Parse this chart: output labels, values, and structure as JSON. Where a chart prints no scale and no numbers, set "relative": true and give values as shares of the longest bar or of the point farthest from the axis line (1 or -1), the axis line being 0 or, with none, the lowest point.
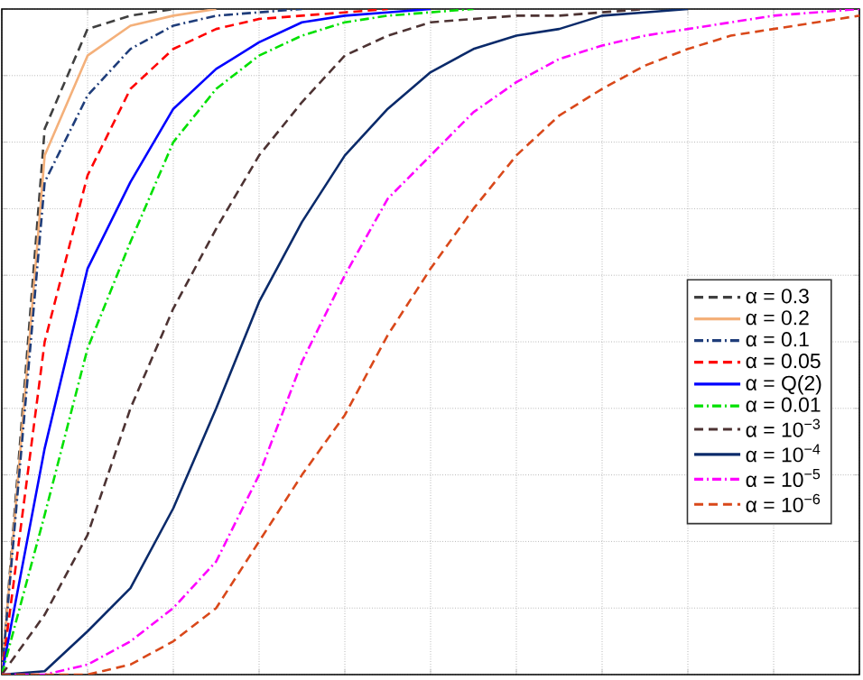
{
  "chart_data": {
    "type": "line",
    "relative": true,
    "grid": true,
    "legend": "right",
    "categories": [
      null,
      null,
      null,
      null,
      null,
      null,
      null,
      null,
      null,
      null,
      null,
      null,
      null,
      null,
      null,
      null,
      null,
      null,
      null,
      null,
      null
    ],
    "series": [
      {
        "name": "α = 0.3",
        "color": "#404040",
        "line_style": "dashed",
        "values": [
          0,
          0.82,
          0.97,
          0.99,
          1,
          null,
          null,
          null,
          null,
          null,
          null,
          null,
          null,
          null,
          null,
          null,
          null,
          null,
          null,
          null,
          null
        ]
      },
      {
        "name": "α = 0.2",
        "color": "#f4b07a",
        "line_style": "solid",
        "values": [
          0,
          0.78,
          0.93,
          0.975,
          0.99,
          1,
          null,
          null,
          null,
          null,
          null,
          null,
          null,
          null,
          null,
          null,
          null,
          null,
          null,
          null,
          null
        ]
      },
      {
        "name": "α = 0.1",
        "color": "#1f3d7a",
        "line_style": "dashdot",
        "values": [
          0,
          0.74,
          0.87,
          0.94,
          0.975,
          0.99,
          0.995,
          1,
          null,
          null,
          null,
          null,
          null,
          null,
          null,
          null,
          null,
          null,
          null,
          null,
          null
        ]
      },
      {
        "name": "α = 0.05",
        "color": "#ff0000",
        "line_style": "dashed",
        "values": [
          0,
          0.5,
          0.75,
          0.88,
          0.94,
          0.97,
          0.985,
          0.99,
          0.995,
          1,
          null,
          null,
          null,
          null,
          null,
          null,
          null,
          null,
          null,
          null,
          null
        ]
      },
      {
        "name": "α = Q(2)",
        "color": "#0000ff",
        "line_style": "solid",
        "values": [
          0,
          0.34,
          0.61,
          0.74,
          0.85,
          0.91,
          0.95,
          0.98,
          0.99,
          0.995,
          1,
          null,
          null,
          null,
          null,
          null,
          null,
          null,
          null,
          null,
          null
        ]
      },
      {
        "name": "α = 0.01",
        "color": "#00e000",
        "line_style": "dashdot",
        "values": [
          0,
          0.24,
          0.49,
          0.65,
          0.8,
          0.88,
          0.93,
          0.96,
          0.98,
          0.99,
          0.995,
          1,
          null,
          null,
          null,
          null,
          null,
          null,
          null,
          null,
          null
        ]
      },
      {
        "name": "α = 10$^{−3}$",
        "color": "#4d3333",
        "line_style": "dashed",
        "values": [
          0,
          0.09,
          0.21,
          0.4,
          0.55,
          0.67,
          0.78,
          0.86,
          0.93,
          0.96,
          0.98,
          0.985,
          0.99,
          0.99,
          0.995,
          1,
          null,
          null,
          null,
          null,
          null
        ]
      },
      {
        "name": "α = 10$^{−4}$",
        "color": "#0a2a6a",
        "line_style": "solid",
        "values": [
          0,
          0.005,
          0.065,
          0.13,
          0.25,
          0.4,
          0.56,
          0.68,
          0.78,
          0.85,
          0.905,
          0.94,
          0.96,
          0.97,
          0.99,
          0.995,
          1,
          null,
          null,
          null,
          null
        ]
      },
      {
        "name": "α = 10$^{−5}$",
        "color": "#ff00ff",
        "line_style": "dashdot",
        "values": [
          0,
          0,
          0.015,
          0.05,
          0.1,
          0.17,
          0.3,
          0.47,
          0.6,
          0.715,
          0.78,
          0.845,
          0.89,
          0.925,
          0.945,
          0.96,
          0.97,
          0.98,
          0.99,
          0.995,
          1
        ]
      },
      {
        "name": "α = 10$^{−6}$",
        "color": "#d9481a",
        "line_style": "dashed",
        "values": [
          0,
          0,
          0,
          0.015,
          0.05,
          0.1,
          0.2,
          0.3,
          0.39,
          0.51,
          0.61,
          0.7,
          0.78,
          0.84,
          0.88,
          0.915,
          0.94,
          0.96,
          0.97,
          0.98,
          0.99
        ]
      }
    ]
  }
}
